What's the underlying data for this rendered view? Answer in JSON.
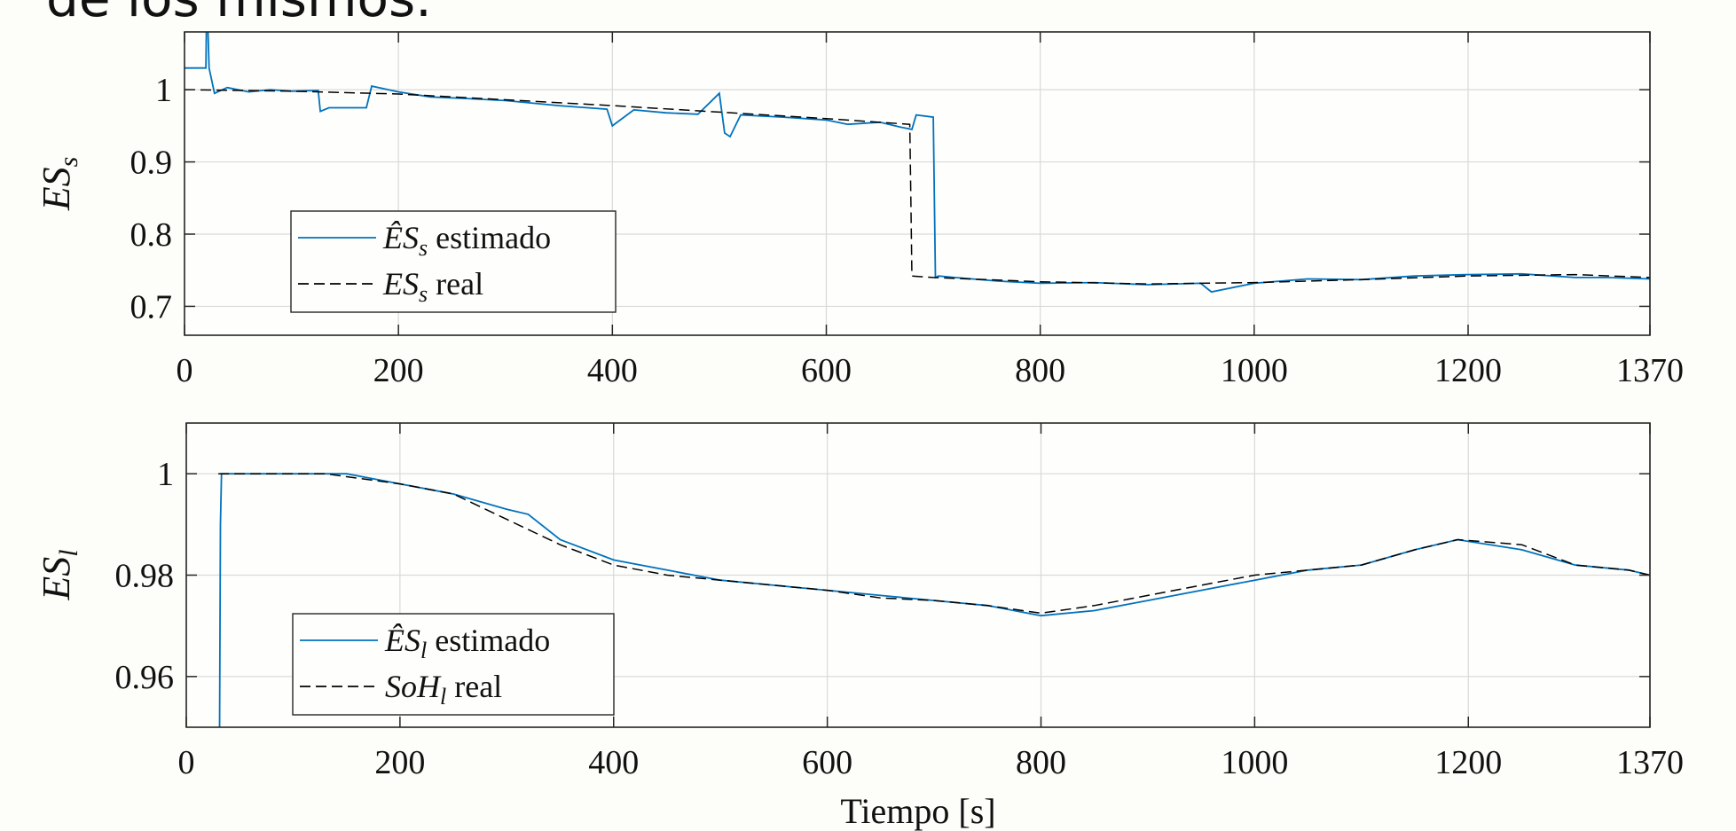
{
  "slide": {
    "heading_fragment": "de los mismos."
  },
  "colors": {
    "estimate": "#0072bd",
    "real": "#000000",
    "background": "#fdfdfa"
  },
  "chart_data": [
    {
      "type": "line",
      "ylabel": "ES_s",
      "xlabel": "",
      "xlim": [
        0,
        1370
      ],
      "ylim": [
        0.66,
        1.08
      ],
      "xticks": [
        0,
        200,
        400,
        600,
        800,
        1000,
        1200,
        1370
      ],
      "yticks": [
        0.7,
        0.8,
        0.9,
        1.0
      ],
      "ytick_labels": [
        "0.7",
        "0.8",
        "0.9",
        "1"
      ],
      "grid": true,
      "legend_placement": "bottom-left",
      "legend": [
        {
          "name": "ÊS_s estimado",
          "symbol": "ÊS",
          "sub": "s",
          "text": " estimado"
        },
        {
          "name": "ES_s real",
          "symbol": "ES",
          "sub": "s",
          "text": " real"
        }
      ],
      "series": [
        {
          "name": "ÊS_s estimado",
          "x": [
            0,
            20,
            21,
            22,
            23,
            28,
            40,
            60,
            80,
            100,
            125,
            127,
            135,
            170,
            175,
            200,
            230,
            260,
            300,
            350,
            395,
            400,
            420,
            450,
            480,
            500,
            505,
            510,
            520,
            560,
            600,
            620,
            650,
            670,
            680,
            684,
            700,
            702,
            705,
            720,
            760,
            800,
            850,
            900,
            950,
            960,
            1000,
            1050,
            1100,
            1150,
            1200,
            1250,
            1300,
            1330,
            1370
          ],
          "y": [
            1.03,
            1.03,
            1.15,
            1.08,
            1.03,
            0.995,
            1.003,
            0.997,
            1.0,
            0.998,
            0.999,
            0.97,
            0.975,
            0.975,
            1.005,
            0.997,
            0.99,
            0.988,
            0.985,
            0.978,
            0.973,
            0.95,
            0.972,
            0.968,
            0.966,
            0.995,
            0.94,
            0.935,
            0.965,
            0.962,
            0.958,
            0.952,
            0.955,
            0.948,
            0.945,
            0.965,
            0.962,
            0.74,
            0.742,
            0.74,
            0.735,
            0.732,
            0.733,
            0.73,
            0.732,
            0.72,
            0.732,
            0.738,
            0.737,
            0.742,
            0.744,
            0.745,
            0.74,
            0.74,
            0.738
          ]
        },
        {
          "name": "ES_s real",
          "x": [
            0,
            100,
            200,
            300,
            400,
            500,
            600,
            678,
            679,
            680,
            700,
            800,
            900,
            1000,
            1100,
            1200,
            1300,
            1370
          ],
          "y": [
            1.0,
            0.998,
            0.994,
            0.986,
            0.978,
            0.969,
            0.96,
            0.952,
            0.85,
            0.742,
            0.74,
            0.734,
            0.731,
            0.733,
            0.737,
            0.742,
            0.744,
            0.74
          ]
        }
      ]
    },
    {
      "type": "line",
      "ylabel": "ES_l",
      "xlabel": "Tiempo [s]",
      "xlim": [
        0,
        1370
      ],
      "ylim": [
        0.95,
        1.01
      ],
      "xticks": [
        0,
        200,
        400,
        600,
        800,
        1000,
        1200,
        1370
      ],
      "yticks": [
        0.96,
        0.98,
        1.0
      ],
      "ytick_labels": [
        "0.96",
        "0.98",
        "1"
      ],
      "grid": true,
      "legend_placement": "bottom-left",
      "legend": [
        {
          "name": "ÊS_l estimado",
          "symbol": "ÊS",
          "sub": "l",
          "text": " estimado"
        },
        {
          "name": "SoH_l real",
          "symbol": "SoH",
          "sub": "l",
          "text": " real"
        }
      ],
      "series": [
        {
          "name": "ÊS_l estimado",
          "x": [
            31,
            32,
            33,
            80,
            100,
            150,
            175,
            200,
            250,
            300,
            320,
            350,
            400,
            450,
            500,
            550,
            600,
            650,
            700,
            750,
            800,
            850,
            900,
            950,
            1000,
            1050,
            1100,
            1150,
            1190,
            1250,
            1300,
            1350,
            1370
          ],
          "y": [
            0.94,
            0.99,
            1.0,
            1.0,
            1.0,
            1.0,
            0.999,
            0.998,
            0.996,
            0.993,
            0.992,
            0.987,
            0.983,
            0.981,
            0.979,
            0.978,
            0.977,
            0.976,
            0.975,
            0.974,
            0.972,
            0.973,
            0.975,
            0.977,
            0.979,
            0.981,
            0.982,
            0.985,
            0.987,
            0.985,
            0.982,
            0.981,
            0.98
          ]
        },
        {
          "name": "SoH_l real",
          "x": [
            30,
            80,
            130,
            200,
            250,
            300,
            350,
            400,
            450,
            500,
            550,
            600,
            650,
            700,
            750,
            800,
            850,
            900,
            950,
            1000,
            1050,
            1100,
            1150,
            1190,
            1250,
            1300,
            1350,
            1370
          ],
          "y": [
            1.0,
            1.0,
            1.0,
            0.998,
            0.996,
            0.991,
            0.986,
            0.982,
            0.98,
            0.979,
            0.978,
            0.977,
            0.9755,
            0.975,
            0.974,
            0.9725,
            0.974,
            0.976,
            0.978,
            0.98,
            0.981,
            0.982,
            0.985,
            0.987,
            0.986,
            0.982,
            0.981,
            0.98
          ]
        }
      ]
    }
  ]
}
